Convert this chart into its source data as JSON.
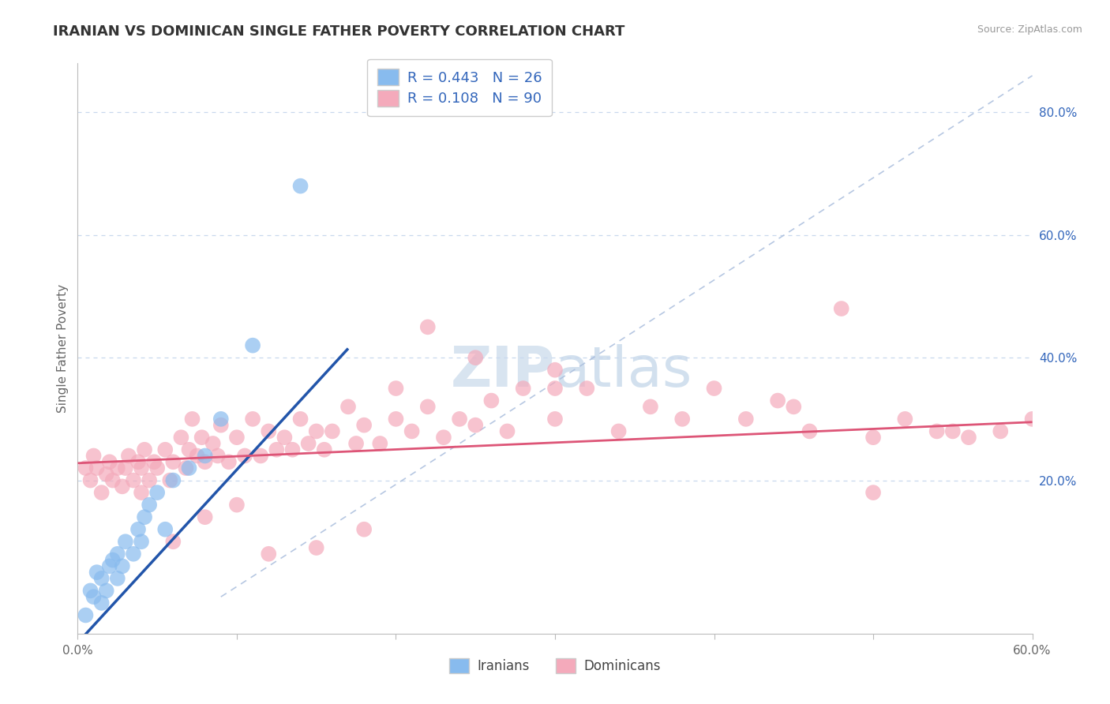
{
  "title": "IRANIAN VS DOMINICAN SINGLE FATHER POVERTY CORRELATION CHART",
  "source": "Source: ZipAtlas.com",
  "ylabel": "Single Father Poverty",
  "xlim": [
    0.0,
    0.6
  ],
  "ylim": [
    -0.05,
    0.88
  ],
  "xticks": [
    0.0,
    0.1,
    0.2,
    0.3,
    0.4,
    0.5,
    0.6
  ],
  "xticklabels": [
    "0.0%",
    "",
    "",
    "",
    "",
    "",
    "60.0%"
  ],
  "yticks_right": [
    0.2,
    0.4,
    0.6,
    0.8
  ],
  "ytick_right_labels": [
    "20.0%",
    "40.0%",
    "60.0%",
    "80.0%"
  ],
  "legend_iranian_label": "Iranians",
  "legend_dominican_label": "Dominicans",
  "iranian_R": 0.443,
  "iranian_N": 26,
  "dominican_R": 0.108,
  "dominican_N": 90,
  "iranian_color": "#88BBEE",
  "dominican_color": "#F4AABB",
  "iranian_line_color": "#2255AA",
  "dominican_line_color": "#DD5577",
  "ref_line_color": "#AABEDD",
  "background_color": "#FFFFFF",
  "grid_color": "#C8D8EE",
  "title_color": "#333333",
  "source_color": "#999999",
  "label_color": "#3366BB",
  "iranians_x": [
    0.005,
    0.008,
    0.01,
    0.012,
    0.015,
    0.015,
    0.018,
    0.02,
    0.022,
    0.025,
    0.025,
    0.028,
    0.03,
    0.035,
    0.038,
    0.04,
    0.042,
    0.045,
    0.05,
    0.055,
    0.06,
    0.07,
    0.08,
    0.09,
    0.11,
    0.14
  ],
  "iranians_y": [
    -0.02,
    0.02,
    0.01,
    0.05,
    0.0,
    0.04,
    0.02,
    0.06,
    0.07,
    0.04,
    0.08,
    0.06,
    0.1,
    0.08,
    0.12,
    0.1,
    0.14,
    0.16,
    0.18,
    0.12,
    0.2,
    0.22,
    0.24,
    0.3,
    0.42,
    0.68
  ],
  "dominicans_x": [
    0.005,
    0.008,
    0.01,
    0.012,
    0.015,
    0.018,
    0.02,
    0.022,
    0.025,
    0.028,
    0.03,
    0.032,
    0.035,
    0.038,
    0.04,
    0.042,
    0.045,
    0.048,
    0.05,
    0.055,
    0.058,
    0.06,
    0.065,
    0.068,
    0.07,
    0.072,
    0.075,
    0.078,
    0.08,
    0.085,
    0.088,
    0.09,
    0.095,
    0.1,
    0.105,
    0.11,
    0.115,
    0.12,
    0.125,
    0.13,
    0.135,
    0.14,
    0.145,
    0.15,
    0.155,
    0.16,
    0.17,
    0.175,
    0.18,
    0.19,
    0.2,
    0.21,
    0.22,
    0.23,
    0.24,
    0.25,
    0.26,
    0.27,
    0.28,
    0.3,
    0.32,
    0.34,
    0.36,
    0.38,
    0.4,
    0.42,
    0.44,
    0.46,
    0.48,
    0.5,
    0.52,
    0.54,
    0.56,
    0.58,
    0.6,
    0.2,
    0.25,
    0.3,
    0.12,
    0.15,
    0.18,
    0.22,
    0.45,
    0.5,
    0.55,
    0.08,
    0.1,
    0.06,
    0.04,
    0.3
  ],
  "dominicans_y": [
    0.22,
    0.2,
    0.24,
    0.22,
    0.18,
    0.21,
    0.23,
    0.2,
    0.22,
    0.19,
    0.22,
    0.24,
    0.2,
    0.23,
    0.22,
    0.25,
    0.2,
    0.23,
    0.22,
    0.25,
    0.2,
    0.23,
    0.27,
    0.22,
    0.25,
    0.3,
    0.24,
    0.27,
    0.23,
    0.26,
    0.24,
    0.29,
    0.23,
    0.27,
    0.24,
    0.3,
    0.24,
    0.28,
    0.25,
    0.27,
    0.25,
    0.3,
    0.26,
    0.28,
    0.25,
    0.28,
    0.32,
    0.26,
    0.29,
    0.26,
    0.3,
    0.28,
    0.32,
    0.27,
    0.3,
    0.29,
    0.33,
    0.28,
    0.35,
    0.3,
    0.35,
    0.28,
    0.32,
    0.3,
    0.35,
    0.3,
    0.33,
    0.28,
    0.48,
    0.27,
    0.3,
    0.28,
    0.27,
    0.28,
    0.3,
    0.35,
    0.4,
    0.38,
    0.08,
    0.09,
    0.12,
    0.45,
    0.32,
    0.18,
    0.28,
    0.14,
    0.16,
    0.1,
    0.18,
    0.35
  ],
  "iranian_line_x": [
    0.0,
    0.17
  ],
  "iranian_line_y": [
    -0.065,
    0.415
  ],
  "dominican_line_x": [
    0.0,
    0.6
  ],
  "dominican_line_y": [
    0.228,
    0.295
  ]
}
